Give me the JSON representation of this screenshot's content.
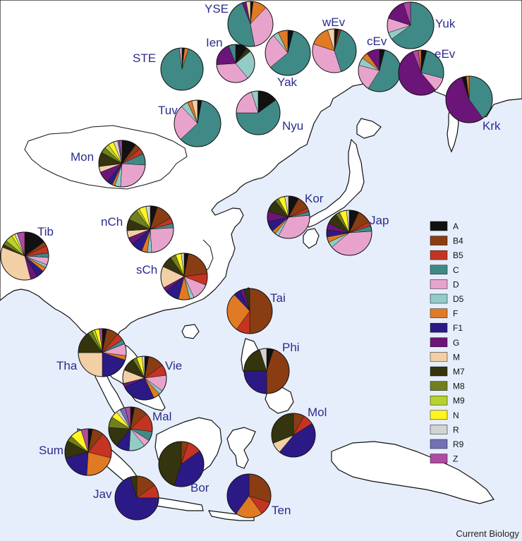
{
  "map": {
    "sea_color": "#e6eefb",
    "land_color": "#ffffff",
    "credit": "Current Biology"
  },
  "legend": [
    {
      "label": "A",
      "color": "#111111"
    },
    {
      "label": "B4",
      "color": "#8a3d12"
    },
    {
      "label": "B5",
      "color": "#c53423"
    },
    {
      "label": "C",
      "color": "#3f8a86"
    },
    {
      "label": "D",
      "color": "#e8a3cd"
    },
    {
      "label": "D5",
      "color": "#93cbc6"
    },
    {
      "label": "F",
      "color": "#e07a24"
    },
    {
      "label": "F1",
      "color": "#2b1a86"
    },
    {
      "label": "G",
      "color": "#6c1578"
    },
    {
      "label": "M",
      "color": "#f3cfa6"
    },
    {
      "label": "M7",
      "color": "#34340f"
    },
    {
      "label": "M8",
      "color": "#717f1d"
    },
    {
      "label": "M9",
      "color": "#b7d22c"
    },
    {
      "label": "N",
      "color": "#fff51f"
    },
    {
      "label": "R",
      "color": "#d3d3d3"
    },
    {
      "label": "R9",
      "color": "#7570b3"
    },
    {
      "label": "Z",
      "color": "#b04aa3"
    }
  ],
  "populations": [
    {
      "label": "YSE",
      "composition": {
        "A": 2,
        "B4": 0,
        "F": 10,
        "D": 35,
        "C": 47,
        "G": 3,
        "M": 3
      }
    },
    {
      "label": "STE",
      "composition": {
        "A": 2,
        "F": 3,
        "C": 93,
        "D": 2
      }
    },
    {
      "label": "Ien",
      "composition": {
        "A": 10,
        "M7": 4,
        "D5": 25,
        "D": 35,
        "G": 20,
        "C": 6
      }
    },
    {
      "label": "Yak",
      "composition": {
        "A": 4,
        "C": 60,
        "D": 25,
        "D5": 4,
        "F": 7
      }
    },
    {
      "label": "wEv",
      "composition": {
        "A": 3,
        "B4": 2,
        "C": 40,
        "D": 35,
        "F": 15,
        "M": 5
      }
    },
    {
      "label": "cEv",
      "composition": {
        "A": 4,
        "C": 55,
        "D": 20,
        "D5": 6,
        "F": 5,
        "G": 10
      }
    },
    {
      "label": "Yuk",
      "composition": {
        "C": 65,
        "D5": 5,
        "D": 10,
        "G": 15,
        "Z": 5
      }
    },
    {
      "label": "eEv",
      "composition": {
        "A": 4,
        "C": 25,
        "D": 10,
        "G": 55,
        "Z": 4,
        "F": 2
      }
    },
    {
      "label": "Krk",
      "composition": {
        "C": 40,
        "G": 55,
        "A": 3,
        "F": 2
      }
    },
    {
      "label": "Tuv",
      "composition": {
        "A": 3,
        "C": 60,
        "D": 25,
        "D5": 5,
        "F": 3,
        "M": 4
      }
    },
    {
      "label": "Nyu",
      "composition": {
        "A": 15,
        "C": 60,
        "D": 20,
        "D5": 5
      }
    },
    {
      "label": "Mon",
      "composition": {
        "A": 10,
        "B4": 4,
        "B5": 4,
        "C": 8,
        "D": 25,
        "D5": 4,
        "F": 2,
        "F1": 4,
        "G": 8,
        "M": 4,
        "M7": 10,
        "M8": 4,
        "M9": 3,
        "N": 4,
        "R": 3,
        "R9": 1,
        "Z": 2
      }
    },
    {
      "label": "Kor",
      "composition": {
        "A": 8,
        "B4": 10,
        "B5": 3,
        "C": 3,
        "D": 35,
        "D5": 3,
        "F": 3,
        "F1": 8,
        "G": 8,
        "M7": 10,
        "M8": 3,
        "N": 5,
        "R": 3
      }
    },
    {
      "label": "Jap",
      "composition": {
        "A": 7,
        "B4": 10,
        "B5": 3,
        "C": 4,
        "D": 40,
        "D5": 4,
        "F": 4,
        "F1": 5,
        "G": 5,
        "M7": 8,
        "M8": 3,
        "N": 5,
        "R": 2
      }
    },
    {
      "label": "nCh",
      "composition": {
        "A": 5,
        "B4": 12,
        "B5": 4,
        "C": 3,
        "D": 25,
        "D5": 3,
        "F": 4,
        "F1": 8,
        "G": 5,
        "M": 5,
        "M7": 8,
        "M8": 8,
        "M9": 2,
        "N": 5,
        "R": 3
      }
    },
    {
      "label": "Tib",
      "composition": {
        "A": 15,
        "B4": 3,
        "B5": 5,
        "C": 3,
        "D": 5,
        "D5": 2,
        "F": 3,
        "F1": 5,
        "G": 5,
        "M": 35,
        "M7": 2,
        "M8": 3,
        "M9": 5,
        "N": 2,
        "R": 2,
        "Z": 5
      }
    },
    {
      "label": "sCh",
      "composition": {
        "A": 3,
        "B4": 20,
        "B5": 8,
        "D": 12,
        "D5": 3,
        "F": 8,
        "F1": 10,
        "G": 3,
        "M": 15,
        "M7": 8,
        "M8": 4,
        "N": 4,
        "R": 2
      }
    },
    {
      "label": "Tai",
      "composition": {
        "B4": 50,
        "B5": 10,
        "F": 28,
        "F1": 5,
        "G": 3,
        "M7": 4
      }
    },
    {
      "label": "Tha",
      "composition": {
        "A": 3,
        "B4": 8,
        "B5": 5,
        "C": 3,
        "D": 8,
        "F": 3,
        "F1": 20,
        "M": 25,
        "M7": 15,
        "M8": 3,
        "M9": 2,
        "N": 3,
        "Z": 2
      }
    },
    {
      "label": "Vie",
      "composition": {
        "A": 3,
        "B4": 12,
        "B5": 8,
        "D": 12,
        "D5": 3,
        "F": 5,
        "F1": 25,
        "G": 3,
        "M": 10,
        "M7": 10,
        "M8": 3,
        "N": 4,
        "R": 2
      }
    },
    {
      "label": "Phi",
      "composition": {
        "A": 5,
        "B4": 45,
        "F1": 25,
        "M7": 20,
        "R": 5
      }
    },
    {
      "label": "Mal",
      "composition": {
        "A": 3,
        "B4": 10,
        "B5": 14,
        "C": 7,
        "D": 5,
        "D5": 12,
        "F1": 10,
        "M7": 15,
        "M8": 8,
        "N": 5,
        "R": 3,
        "R9": 4,
        "Z": 4
      }
    },
    {
      "label": "Sum",
      "composition": {
        "A": 3,
        "B4": 8,
        "B5": 18,
        "F": 22,
        "F1": 20,
        "M7": 12,
        "M8": 4,
        "N": 8,
        "Z": 5
      }
    },
    {
      "label": "Jav",
      "composition": {
        "B4": 15,
        "B5": 10,
        "F1": 70,
        "M7": 5
      }
    },
    {
      "label": "Bor",
      "composition": {
        "B4": 5,
        "B5": 10,
        "F1": 40,
        "M7": 45
      }
    },
    {
      "label": "Mol",
      "composition": {
        "B4": 8,
        "B5": 8,
        "F1": 45,
        "M": 8,
        "M7": 31
      }
    },
    {
      "label": "Ten",
      "composition": {
        "B4": 30,
        "B5": 10,
        "F": 20,
        "F1": 40
      }
    }
  ]
}
